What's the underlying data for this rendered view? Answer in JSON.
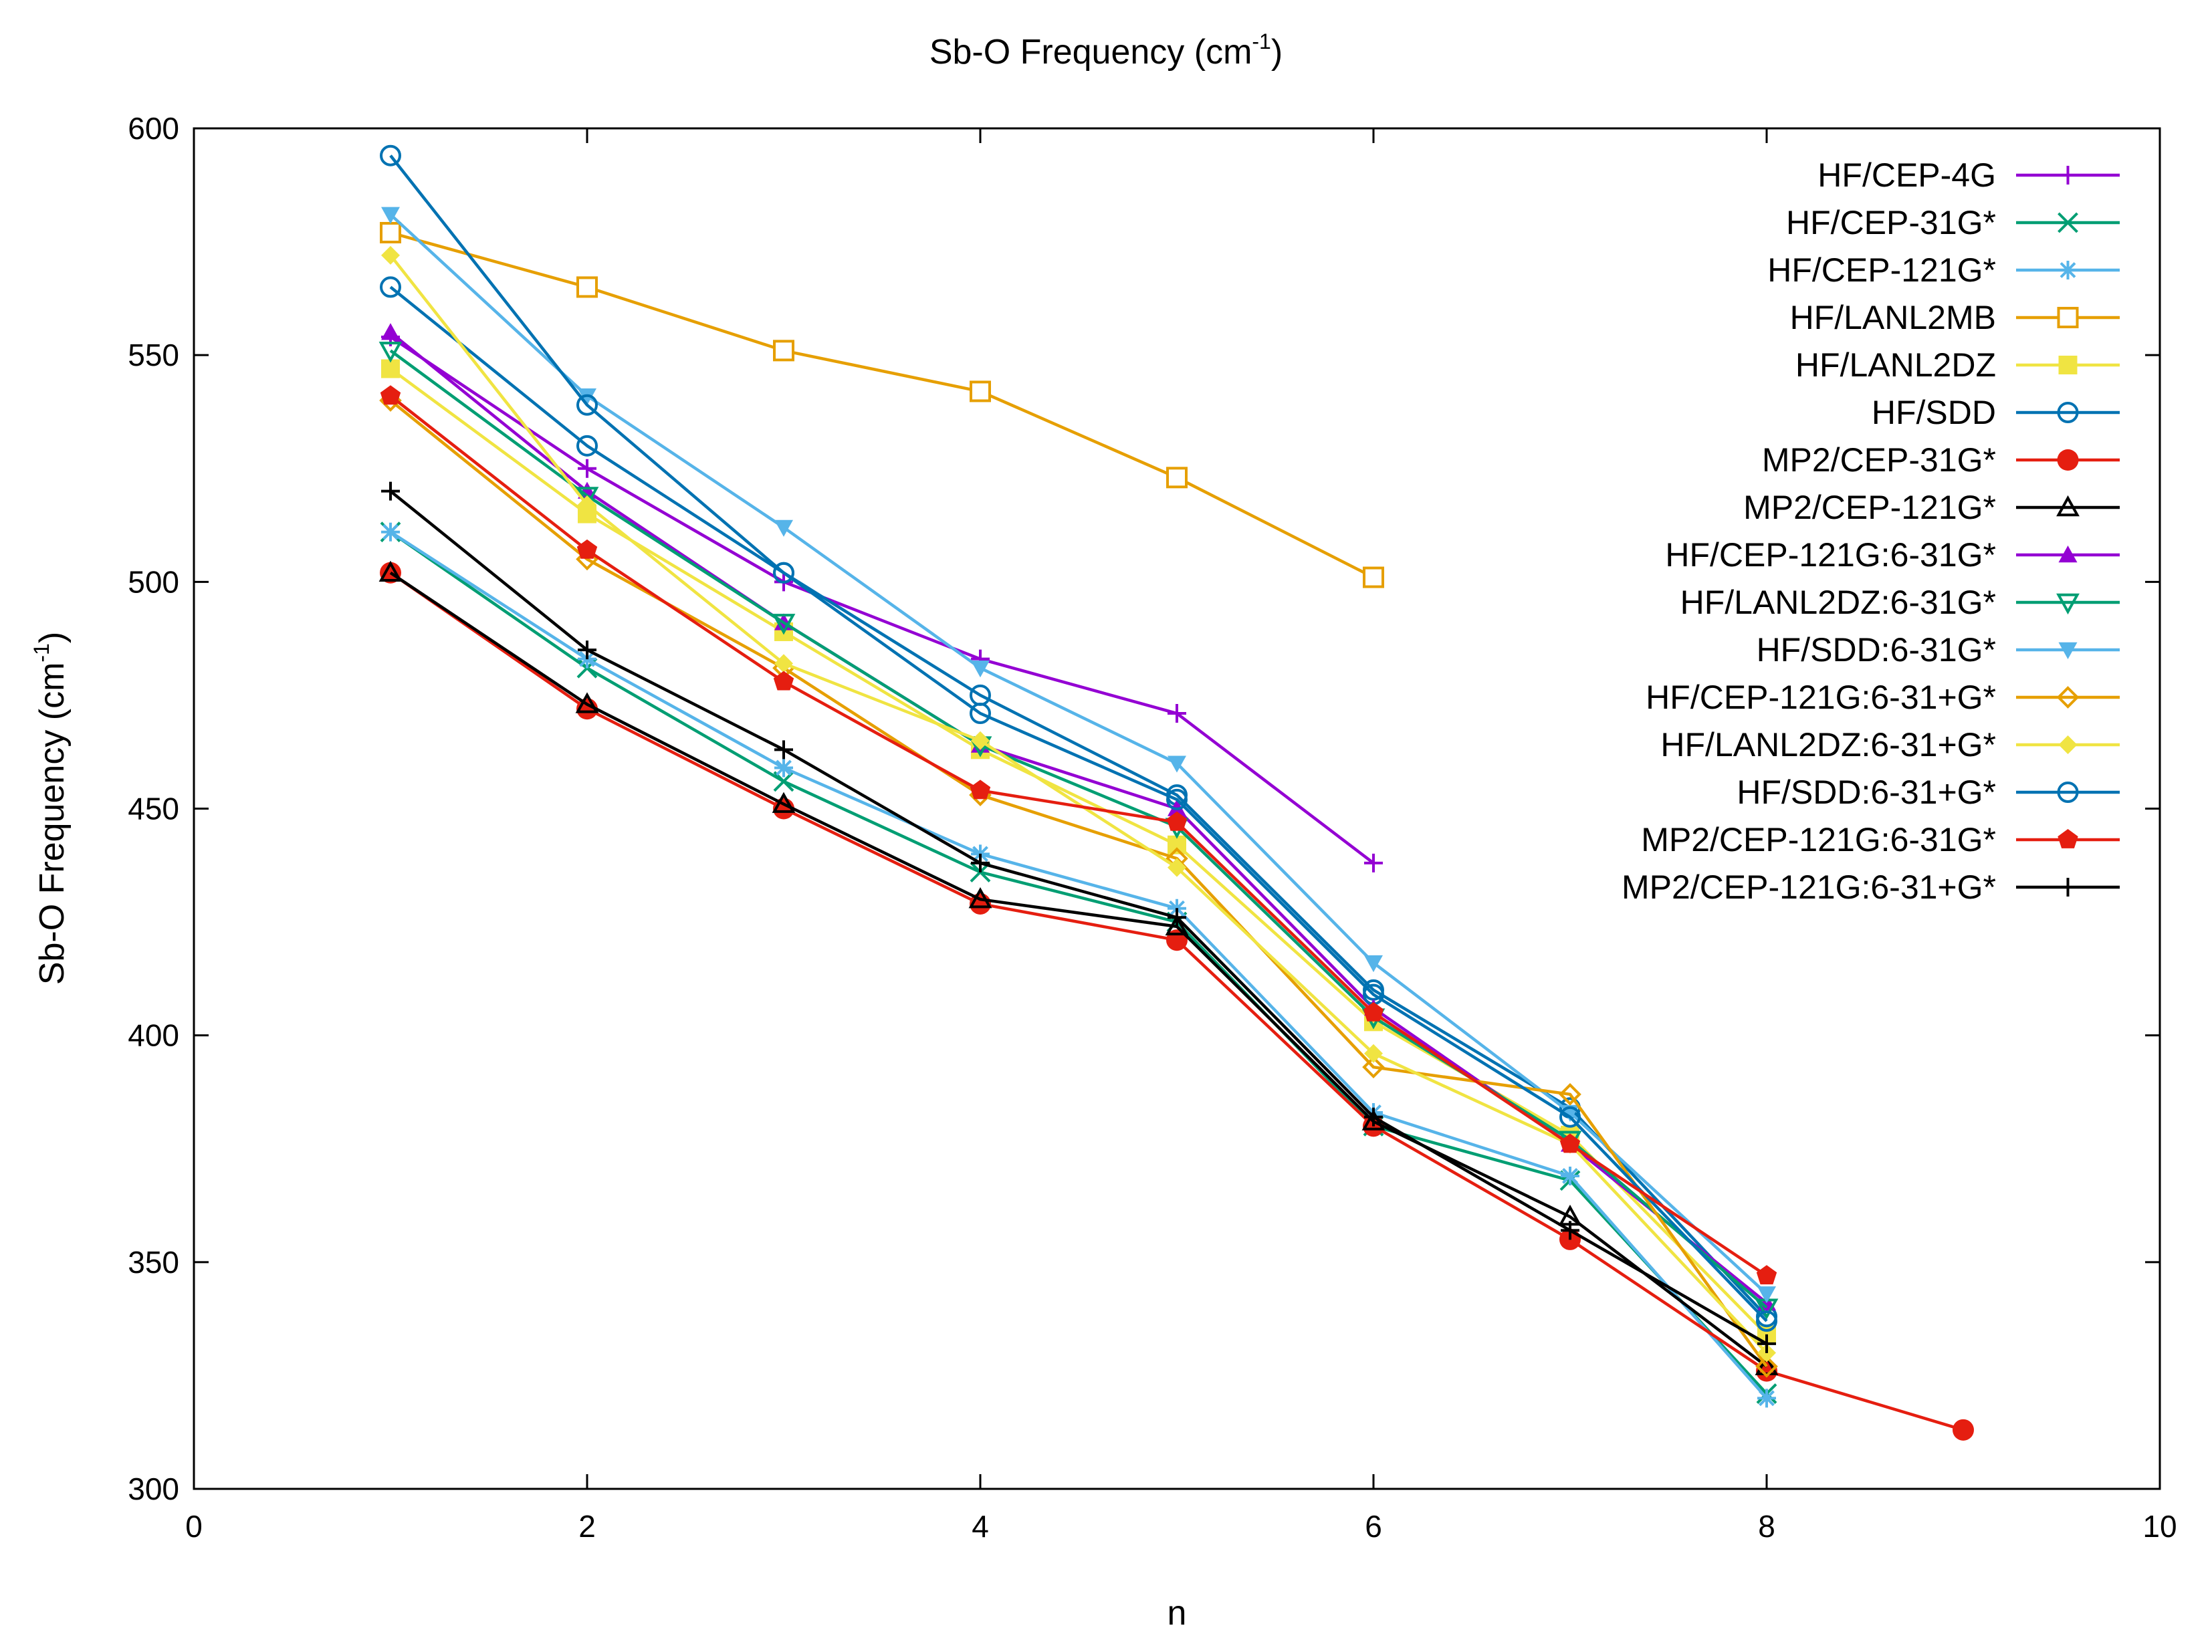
{
  "chart_data": {
    "type": "line",
    "title": "Sb-O Frequency (cm",
    "title_sup": "-1",
    "title_end": ")",
    "xlabel": "n",
    "ylabel": "Sb-O Frequency (cm",
    "ylabel_sup": "-1",
    "ylabel_end": ")",
    "xlim": [
      0,
      10
    ],
    "ylim": [
      300,
      600
    ],
    "xticks": [
      "0",
      "2",
      "4",
      "6",
      "8",
      "10"
    ],
    "yticks": [
      "300",
      "350",
      "400",
      "450",
      "500",
      "550",
      "600"
    ],
    "grid": false,
    "legend_position": "top-right",
    "series": [
      {
        "name": "HF/CEP-4G",
        "color": "#9400d3",
        "marker": "plus",
        "x": [
          1,
          2,
          3,
          4,
          5,
          6
        ],
        "y": [
          554,
          525,
          500,
          483,
          471,
          438
        ]
      },
      {
        "name": "HF/CEP-31G*",
        "color": "#009e73",
        "marker": "cross",
        "x": [
          1,
          2,
          3,
          4,
          5,
          6,
          7,
          8
        ],
        "y": [
          511,
          481,
          456,
          436,
          425,
          380,
          368,
          321
        ]
      },
      {
        "name": "HF/CEP-121G*",
        "color": "#56b4e9",
        "marker": "star",
        "x": [
          1,
          2,
          3,
          4,
          5,
          6,
          7,
          8
        ],
        "y": [
          511,
          483,
          459,
          440,
          428,
          383,
          369,
          320
        ]
      },
      {
        "name": "HF/LANL2MB",
        "color": "#e69f00",
        "marker": "open-square",
        "x": [
          1,
          2,
          3,
          4,
          5,
          6
        ],
        "y": [
          577,
          565,
          551,
          542,
          523,
          501
        ]
      },
      {
        "name": "HF/LANL2DZ",
        "color": "#f0e442",
        "marker": "filled-square",
        "x": [
          1,
          2,
          3,
          4,
          5,
          6,
          7,
          8
        ],
        "y": [
          547,
          515,
          489,
          463,
          442,
          403,
          378,
          334
        ]
      },
      {
        "name": "HF/SDD",
        "color": "#0072b2",
        "marker": "open-circle",
        "x": [
          1,
          2,
          3,
          4,
          5,
          6,
          7,
          8
        ],
        "y": [
          565,
          530,
          502,
          475,
          453,
          410,
          384,
          338
        ]
      },
      {
        "name": "MP2/CEP-31G*",
        "color": "#e51e10",
        "marker": "filled-circle",
        "x": [
          1,
          2,
          3,
          4,
          5,
          6,
          7,
          8,
          9
        ],
        "y": [
          502,
          472,
          450,
          429,
          421,
          380,
          355,
          326,
          313
        ]
      },
      {
        "name": "MP2/CEP-121G*",
        "color": "#000000",
        "marker": "open-triangle",
        "x": [
          1,
          2,
          3,
          4,
          5,
          6,
          7,
          8
        ],
        "y": [
          502,
          473,
          451,
          430,
          424,
          381,
          360,
          327
        ]
      },
      {
        "name": "HF/CEP-121G:6-31G*",
        "color": "#9400d3",
        "marker": "filled-triangle",
        "x": [
          1,
          2,
          3,
          4,
          5,
          6,
          7,
          8
        ],
        "y": [
          555,
          520,
          491,
          464,
          450,
          406,
          376,
          341
        ]
      },
      {
        "name": "HF/LANL2DZ:6-31G*",
        "color": "#009e73",
        "marker": "open-triangle-down",
        "x": [
          1,
          2,
          3,
          4,
          5,
          6,
          7,
          8
        ],
        "y": [
          551,
          519,
          491,
          464,
          446,
          404,
          377,
          340
        ]
      },
      {
        "name": "HF/SDD:6-31G*",
        "color": "#56b4e9",
        "marker": "filled-triangle-down",
        "x": [
          1,
          2,
          3,
          4,
          5,
          6,
          7,
          8
        ],
        "y": [
          581,
          541,
          512,
          481,
          460,
          416,
          383,
          343
        ]
      },
      {
        "name": "HF/CEP-121G:6-31+G*",
        "color": "#e69f00",
        "marker": "open-diamond",
        "x": [
          1,
          2,
          3,
          4,
          5,
          6,
          7,
          8
        ],
        "y": [
          540,
          505,
          481,
          453,
          439,
          393,
          387,
          327
        ]
      },
      {
        "name": "HF/LANL2DZ:6-31+G*",
        "color": "#f0e442",
        "marker": "filled-diamond",
        "x": [
          1,
          2,
          3,
          4,
          5,
          6,
          7,
          8
        ],
        "y": [
          572,
          517,
          482,
          465,
          437,
          396,
          376,
          330
        ]
      },
      {
        "name": "HF/SDD:6-31+G*",
        "color": "#0072b2",
        "marker": "open-circle",
        "x": [
          1,
          2,
          3,
          4,
          5,
          6,
          7,
          8
        ],
        "y": [
          594,
          539,
          502,
          471,
          452,
          409,
          382,
          337
        ]
      },
      {
        "name": "MP2/CEP-121G:6-31G*",
        "color": "#e51e10",
        "marker": "filled-pentagon",
        "x": [
          1,
          2,
          3,
          4,
          5,
          6,
          7,
          8
        ],
        "y": [
          541,
          507,
          478,
          454,
          447,
          405,
          376,
          347
        ]
      },
      {
        "name": "MP2/CEP-121G:6-31+G*",
        "color": "#000000",
        "marker": "plus",
        "x": [
          1,
          2,
          3,
          4,
          5,
          6,
          7,
          8
        ],
        "y": [
          520,
          485,
          463,
          438,
          426,
          382,
          357,
          332
        ]
      }
    ]
  }
}
